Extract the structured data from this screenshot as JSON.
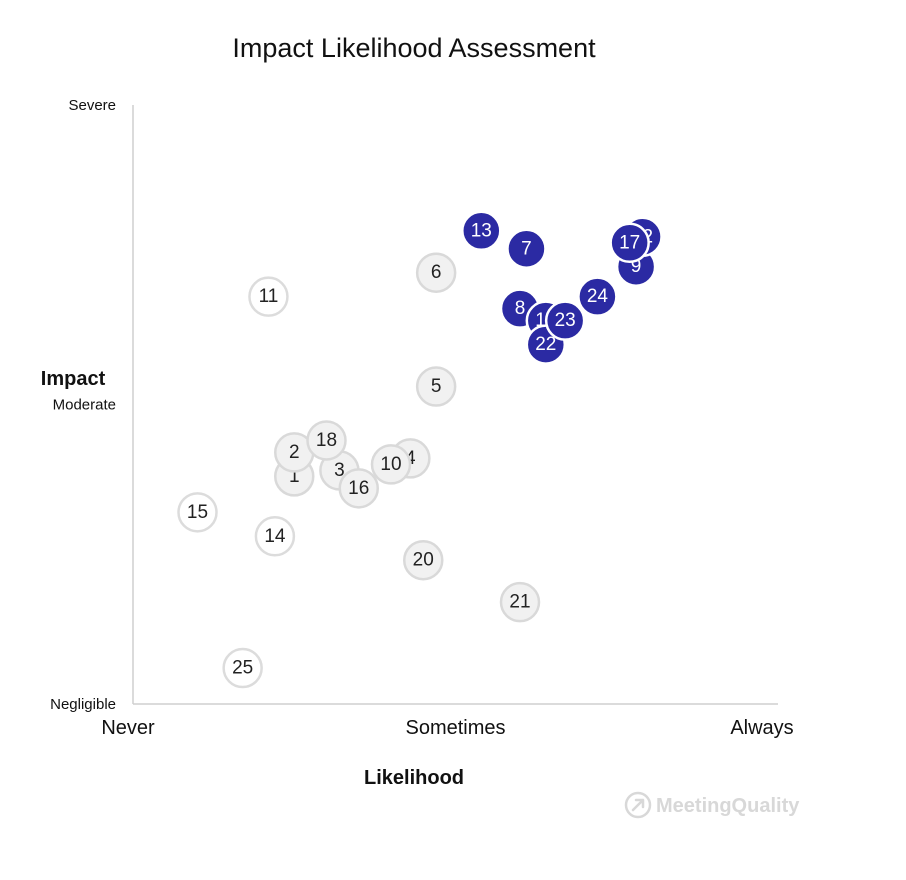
{
  "chart_data": {
    "type": "scatter",
    "title": "Impact Likelihood Assessment",
    "xlabel": "Likelihood",
    "ylabel": "Impact",
    "x_tick_labels": [
      {
        "label": "Never",
        "value": 0
      },
      {
        "label": "Sometimes",
        "value": 50
      },
      {
        "label": "Always",
        "value": 100
      }
    ],
    "y_tick_labels": [
      {
        "label": "Severe",
        "value": 100
      },
      {
        "label": "Moderate",
        "value": 50
      },
      {
        "label": "Negligible",
        "value": 0
      }
    ],
    "xlim": [
      0,
      100
    ],
    "ylim": [
      0,
      100
    ],
    "grid": false,
    "colors": {
      "highlight": "#2b2aa3",
      "neutral": "#f1f1f1",
      "outline": "#d9d9d9"
    },
    "points": [
      {
        "label": "1",
        "x": 25,
        "y": 38,
        "style": "light"
      },
      {
        "label": "2",
        "x": 25,
        "y": 42,
        "style": "light"
      },
      {
        "label": "3",
        "x": 32,
        "y": 39,
        "style": "light"
      },
      {
        "label": "4",
        "x": 43,
        "y": 41,
        "style": "light"
      },
      {
        "label": "5",
        "x": 47,
        "y": 53,
        "style": "light"
      },
      {
        "label": "6",
        "x": 47,
        "y": 72,
        "style": "light"
      },
      {
        "label": "7",
        "x": 61,
        "y": 76,
        "style": "dark"
      },
      {
        "label": "8",
        "x": 60,
        "y": 66,
        "style": "dark"
      },
      {
        "label": "9",
        "x": 78,
        "y": 73,
        "style": "dark"
      },
      {
        "label": "10",
        "x": 40,
        "y": 40,
        "style": "light"
      },
      {
        "label": "11",
        "x": 21,
        "y": 68,
        "style": "white"
      },
      {
        "label": "12",
        "x": 79,
        "y": 78,
        "style": "dark"
      },
      {
        "label": "13",
        "x": 54,
        "y": 79,
        "style": "dark"
      },
      {
        "label": "14",
        "x": 22,
        "y": 28,
        "style": "white"
      },
      {
        "label": "15",
        "x": 10,
        "y": 32,
        "style": "white"
      },
      {
        "label": "16",
        "x": 35,
        "y": 36,
        "style": "light"
      },
      {
        "label": "17",
        "x": 77,
        "y": 77,
        "style": "dark"
      },
      {
        "label": "18",
        "x": 30,
        "y": 44,
        "style": "light"
      },
      {
        "label": "19",
        "x": 64,
        "y": 64,
        "style": "dark"
      },
      {
        "label": "20",
        "x": 45,
        "y": 24,
        "style": "light"
      },
      {
        "label": "21",
        "x": 60,
        "y": 17,
        "style": "light"
      },
      {
        "label": "22",
        "x": 64,
        "y": 60,
        "style": "dark"
      },
      {
        "label": "23",
        "x": 67,
        "y": 64,
        "style": "dark"
      },
      {
        "label": "24",
        "x": 72,
        "y": 68,
        "style": "dark"
      },
      {
        "label": "25",
        "x": 17,
        "y": 6,
        "style": "white"
      }
    ]
  },
  "watermark": {
    "text": "MeetingQuality",
    "icon": "arrow-up-right-circle-icon"
  }
}
